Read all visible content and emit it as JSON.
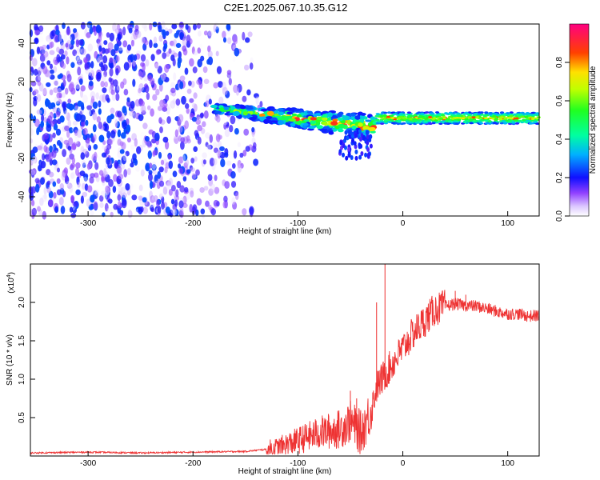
{
  "title": "C2E1.2025.067.10.35.G12",
  "chart_data": [
    {
      "type": "heatmap",
      "xlabel": "Height of straight line (km)",
      "ylabel": "Frequency (Hz)",
      "xlim": [
        -355,
        130
      ],
      "ylim": [
        -50,
        50
      ],
      "x_ticks": [
        "-300",
        "-200",
        "-100",
        "0",
        "100"
      ],
      "y_ticks": [
        "-40",
        "-20",
        "0",
        "20",
        "40"
      ],
      "colorbar": {
        "label": "Normalized spectral amplitude",
        "range": [
          0,
          1
        ],
        "ticks": [
          "0.0",
          "0.2",
          "0.4",
          "0.6",
          "0.8"
        ]
      },
      "regions": [
        {
          "x_start": -355,
          "x_end": -130,
          "description_values": {
            "freq_min": -50,
            "freq_max": 50,
            "amplitude_max": 0.25
          }
        },
        {
          "x_start": -180,
          "x_end": -25,
          "description_values": {
            "freq_at_start": 6,
            "freq_at_end": -4,
            "amplitude_max": 0.9
          }
        },
        {
          "x_start": -25,
          "x_end": 130,
          "description_values": {
            "freq_center": 1,
            "freq_halfwidth": 3,
            "amplitude_max": 0.9
          }
        }
      ]
    },
    {
      "type": "line",
      "xlabel": "Height of straight line (km)",
      "ylabel": "SNR (10 * v/v)",
      "scale_note": "(x10",
      "scale_exp": "4",
      "scale_close": ")",
      "xlim": [
        -355,
        130
      ],
      "ylim": [
        0,
        2.5
      ],
      "x_ticks": [
        "-300",
        "-200",
        "-100",
        "0",
        "100"
      ],
      "y_ticks": [
        "0.5",
        "1.0",
        "1.5",
        "2.0"
      ],
      "series": [
        {
          "color": "#ee3333",
          "points": [
            [
              -355,
              0.04
            ],
            [
              -300,
              0.05
            ],
            [
              -250,
              0.04
            ],
            [
              -200,
              0.05
            ],
            [
              -150,
              0.06
            ],
            [
              -120,
              0.1
            ],
            [
              -100,
              0.2
            ],
            [
              -80,
              0.3
            ],
            [
              -60,
              0.35
            ],
            [
              -50,
              0.45
            ],
            [
              -40,
              0.3
            ],
            [
              -30,
              0.6
            ],
            [
              -25,
              0.9
            ],
            [
              -20,
              1.0
            ],
            [
              -15,
              1.1
            ],
            [
              -10,
              1.2
            ],
            [
              0,
              1.4
            ],
            [
              10,
              1.6
            ],
            [
              20,
              1.75
            ],
            [
              30,
              1.9
            ],
            [
              40,
              1.95
            ],
            [
              50,
              1.98
            ],
            [
              60,
              1.96
            ],
            [
              70,
              1.95
            ],
            [
              80,
              1.92
            ],
            [
              90,
              1.88
            ],
            [
              100,
              1.85
            ],
            [
              110,
              1.85
            ],
            [
              120,
              1.82
            ],
            [
              130,
              1.83
            ]
          ],
          "spikes": [
            [
              -25,
              2.0
            ],
            [
              -17,
              2.5
            ],
            [
              -50,
              0.85
            ],
            [
              -44,
              0.75
            ],
            [
              50,
              2.15
            ],
            [
              60,
              2.1
            ]
          ]
        }
      ]
    }
  ]
}
